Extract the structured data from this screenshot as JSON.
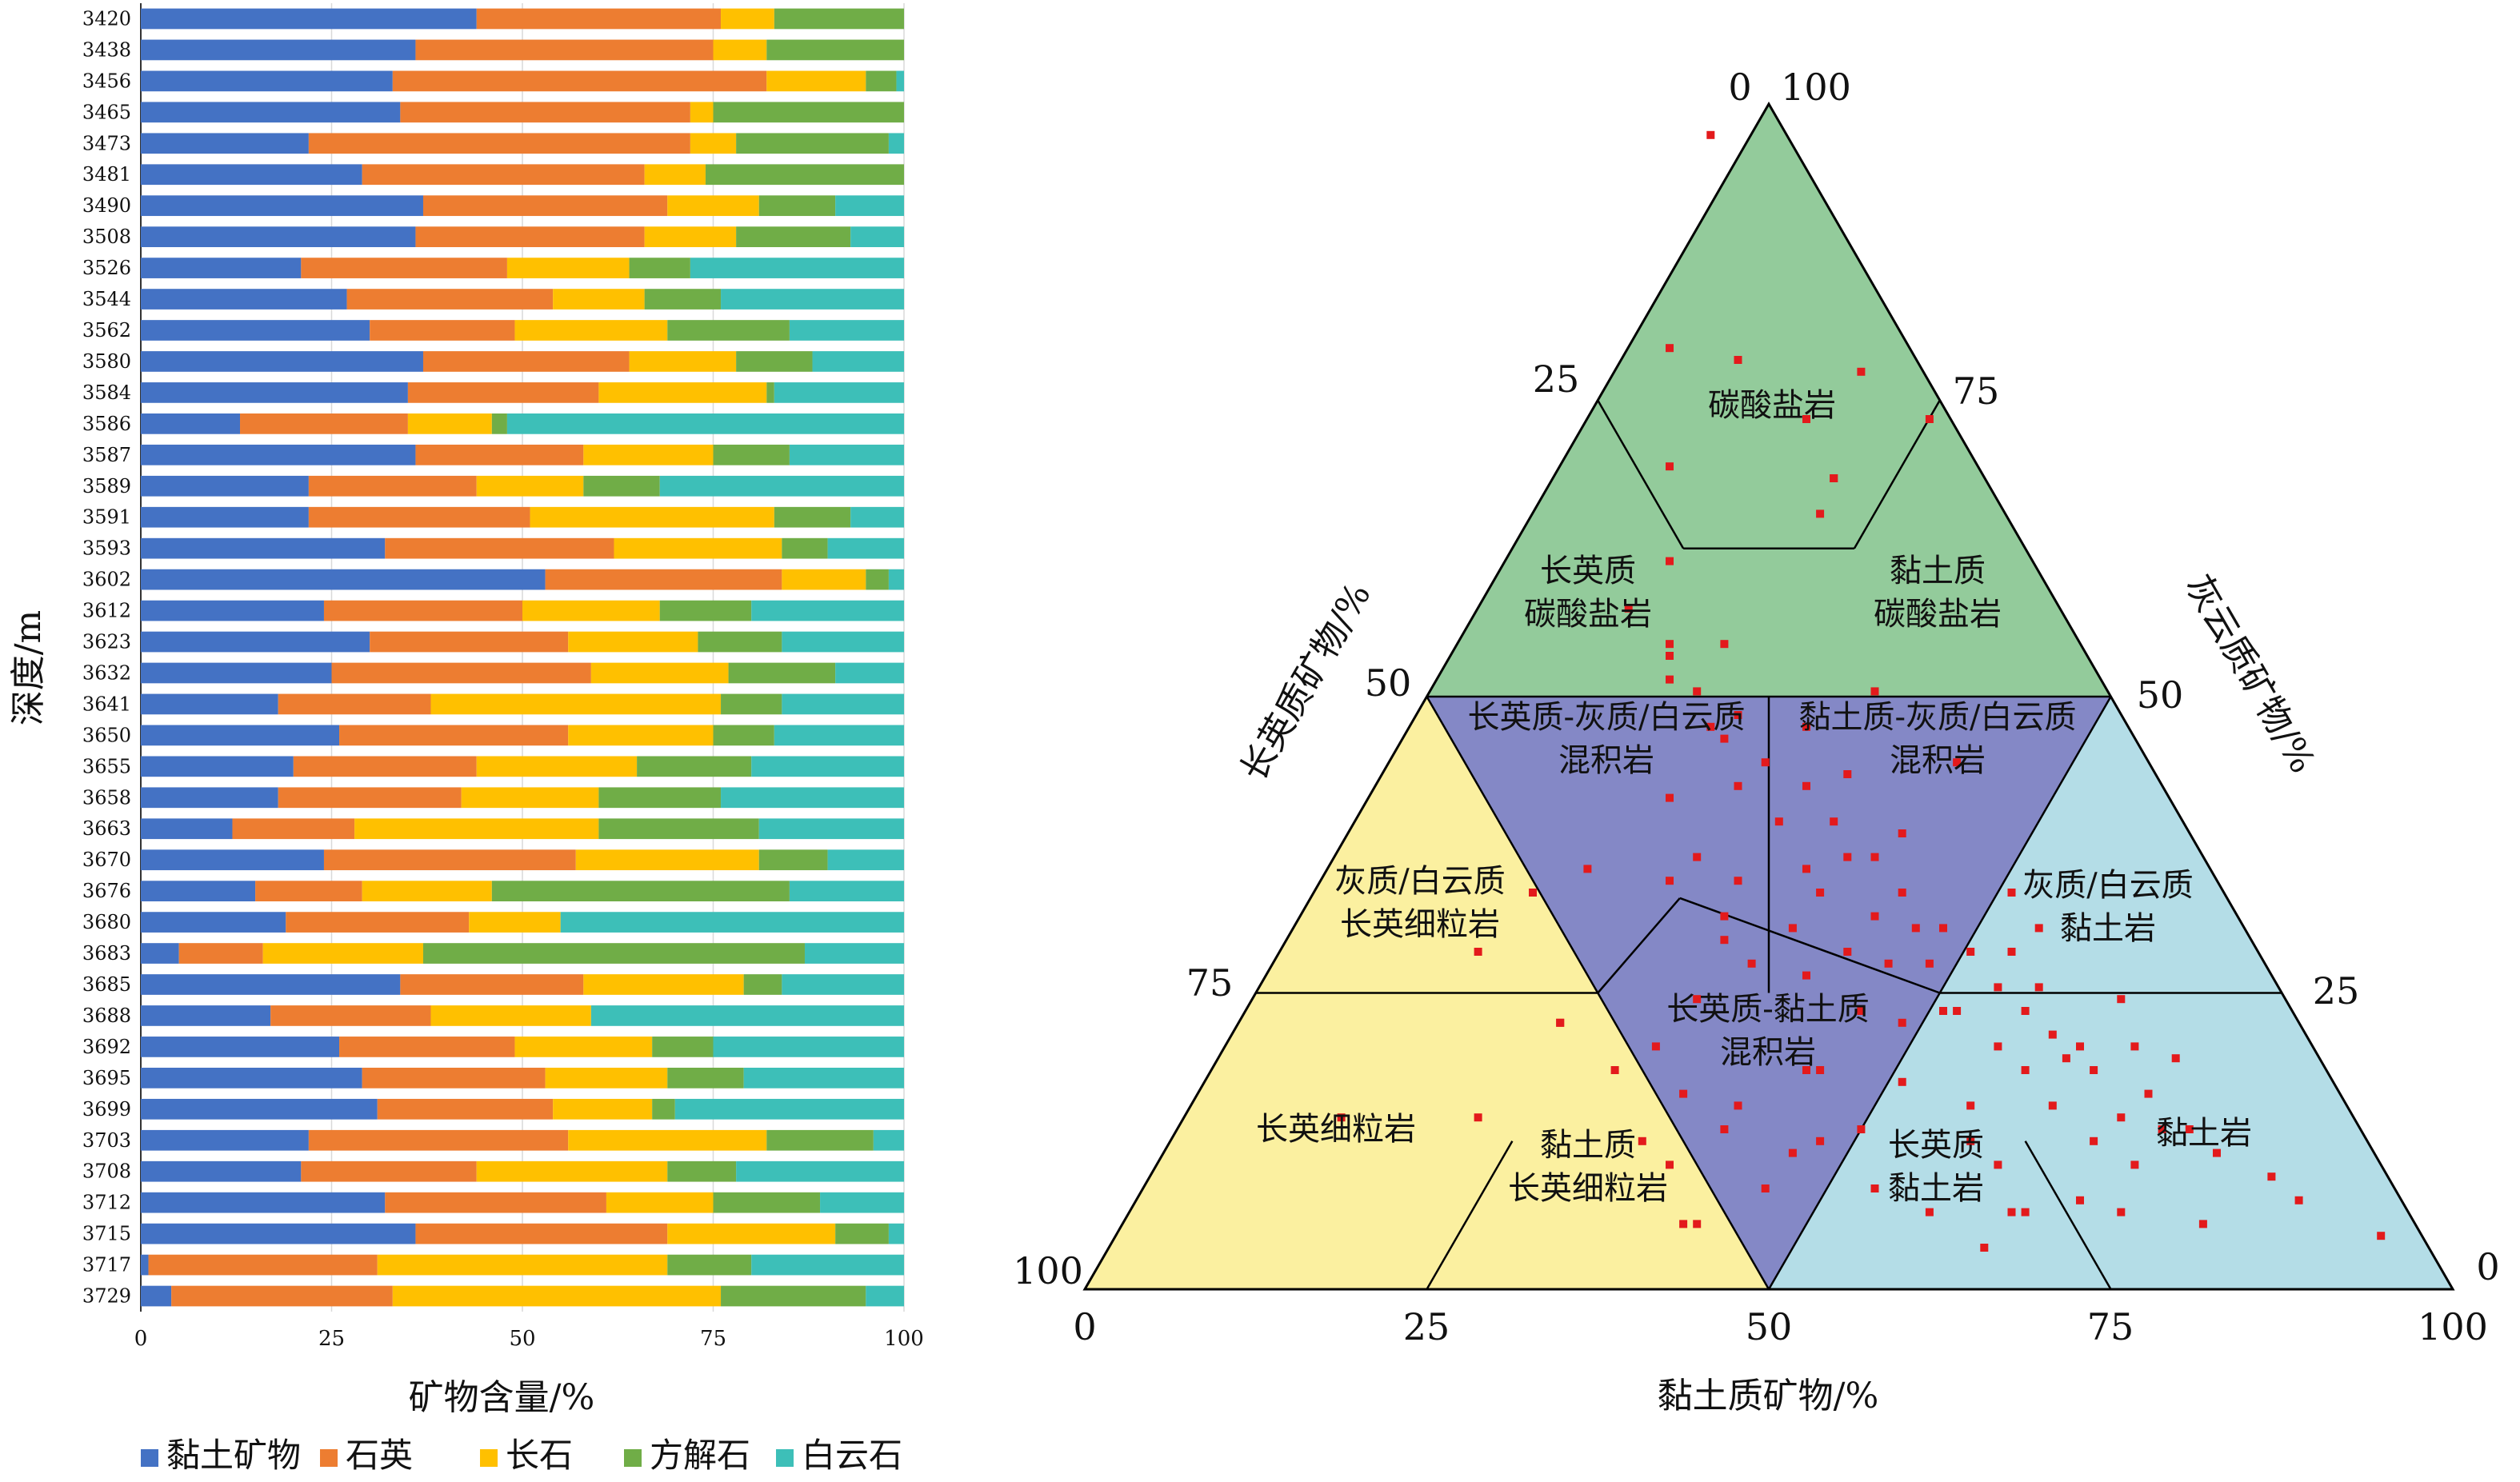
{
  "legend": [
    {
      "name": "黏土矿物",
      "color": "#4472c4"
    },
    {
      "name": "石英",
      "color": "#ed7d31"
    },
    {
      "name": "长石",
      "color": "#ffc000"
    },
    {
      "name": "方解石",
      "color": "#70ad47"
    },
    {
      "name": "白云石",
      "color": "#3dbfb8"
    }
  ],
  "chart_data": [
    {
      "type": "bar",
      "orientation": "horizontal",
      "stacked": true,
      "xlabel": "矿物含量/%",
      "ylabel": "深度/m",
      "xlim": [
        0,
        100
      ],
      "xticks": [
        0,
        25,
        50,
        75,
        100
      ],
      "grid": true,
      "legend_position": "bottom",
      "categories": [
        "3420",
        "3438",
        "3456",
        "3465",
        "3473",
        "3481",
        "3490",
        "3508",
        "3526",
        "3544",
        "3562",
        "3580",
        "3584",
        "3586",
        "3587",
        "3589",
        "3591",
        "3593",
        "3602",
        "3612",
        "3623",
        "3632",
        "3641",
        "3650",
        "3655",
        "3658",
        "3663",
        "3670",
        "3676",
        "3680",
        "3683",
        "3685",
        "3688",
        "3692",
        "3695",
        "3699",
        "3703",
        "3708",
        "3712",
        "3715",
        "3717",
        "3729"
      ],
      "series": [
        {
          "name": "黏土矿物",
          "values": [
            44,
            36,
            33,
            34,
            22,
            29,
            37,
            36,
            21,
            27,
            30,
            37,
            35,
            13,
            36,
            22,
            22,
            32,
            53,
            24,
            30,
            25,
            18,
            26,
            20,
            18,
            12,
            24,
            15,
            19,
            5,
            34,
            17,
            26,
            29,
            31,
            22,
            21,
            32,
            36,
            1,
            4
          ]
        },
        {
          "name": "石英",
          "values": [
            32,
            39,
            49,
            38,
            50,
            37,
            32,
            30,
            27,
            27,
            19,
            27,
            25,
            22,
            22,
            22,
            29,
            30,
            31,
            26,
            26,
            34,
            20,
            30,
            24,
            24,
            16,
            33,
            14,
            24,
            11,
            24,
            21,
            23,
            24,
            23,
            34,
            23,
            29,
            33,
            30,
            29
          ]
        },
        {
          "name": "长石",
          "values": [
            7,
            7,
            13,
            3,
            6,
            8,
            12,
            12,
            16,
            12,
            20,
            14,
            22,
            11,
            17,
            14,
            32,
            22,
            11,
            18,
            17,
            18,
            38,
            19,
            21,
            18,
            32,
            24,
            17,
            12,
            21,
            21,
            21,
            18,
            16,
            13,
            26,
            25,
            14,
            22,
            38,
            43
          ]
        },
        {
          "name": "方解石",
          "values": [
            17,
            18,
            4,
            25,
            20,
            26,
            10,
            15,
            8,
            10,
            16,
            10,
            1,
            2,
            10,
            10,
            10,
            6,
            3,
            12,
            11,
            14,
            8,
            8,
            15,
            16,
            21,
            9,
            39,
            0,
            50,
            5,
            0,
            8,
            10,
            3,
            14,
            9,
            14,
            7,
            11,
            19
          ]
        },
        {
          "name": "白云石",
          "values": [
            0,
            0,
            1,
            0,
            2,
            0,
            9,
            7,
            28,
            24,
            15,
            12,
            17,
            52,
            15,
            32,
            7,
            10,
            2,
            20,
            16,
            9,
            16,
            17,
            20,
            24,
            19,
            10,
            15,
            45,
            13,
            16,
            41,
            25,
            21,
            30,
            4,
            22,
            11,
            2,
            20,
            5
          ]
        }
      ]
    },
    {
      "type": "scatter",
      "subtype": "ternary",
      "axes": [
        "黏土质矿物/%",
        "长英质矿物/%",
        "灰云质矿物/%"
      ],
      "bottom_labels": [
        "0",
        "25",
        "50",
        "75",
        "100"
      ],
      "left_labels": [
        "100",
        "75",
        "50",
        "25",
        "0"
      ],
      "right_labels": [
        "100",
        "75",
        "50",
        "25",
        "0"
      ],
      "zones": [
        "碳酸盐岩",
        "长英质\n碳酸盐岩",
        "黏土质\n碳酸盐岩",
        "长英质-灰质/白云质\n混积岩",
        "黏土质-灰质/白云质\n混积岩",
        "灰质/白云质\n长英细粒岩",
        "灰质/白云质\n黏土岩",
        "长英质-黏土质\n混积岩",
        "长英细粒岩",
        "黏土质\n长英细粒岩",
        "长英质\n黏土岩",
        "黏土岩"
      ],
      "point_color": "#e31a1c",
      "points_clay_carb": [
        [
          3,
          94
        ],
        [
          0,
          76
        ],
        [
          5,
          75
        ],
        [
          14,
          74
        ],
        [
          19,
          70
        ],
        [
          10,
          70
        ],
        [
          12,
          65
        ],
        [
          0,
          66
        ],
        [
          12,
          65
        ],
        [
          11,
          62
        ],
        [
          0,
          58
        ],
        [
          0,
          51
        ],
        [
          0,
          50
        ],
        [
          -3,
          54
        ],
        [
          4,
          51
        ],
        [
          0,
          48
        ],
        [
          2,
          47
        ],
        [
          3,
          44
        ],
        [
          7,
          41
        ],
        [
          5,
          45
        ],
        [
          10,
          44
        ],
        [
          4,
          43
        ],
        [
          5,
          39
        ],
        [
          10,
          39
        ],
        [
          12,
          36
        ],
        [
          8,
          36
        ],
        [
          10,
          32
        ],
        [
          13,
          33
        ],
        [
          15,
          33
        ],
        [
          17,
          30
        ],
        [
          15,
          28
        ],
        [
          18,
          27
        ],
        [
          20,
          27
        ],
        [
          19,
          24
        ],
        [
          22,
          25
        ],
        [
          25,
          25
        ],
        [
          24,
          22
        ],
        [
          26,
          20
        ],
        [
          27,
          22
        ],
        [
          21,
          20
        ],
        [
          28,
          18
        ],
        [
          24,
          17
        ],
        [
          30,
          17
        ],
        [
          34,
          17
        ],
        [
          26,
          15
        ],
        [
          31,
          15
        ],
        [
          35,
          13
        ],
        [
          28,
          12
        ],
        [
          33,
          11
        ],
        [
          36,
          10
        ],
        [
          38,
          10
        ],
        [
          31,
          9
        ],
        [
          40,
          8
        ],
        [
          34,
          7
        ],
        [
          44,
          6
        ],
        [
          23,
          0
        ],
        [
          26,
          3
        ],
        [
          39,
          2
        ],
        [
          52,
          1
        ],
        [
          46,
          4
        ],
        [
          30,
          4
        ],
        [
          24,
          7
        ],
        [
          22,
          9
        ],
        [
          25,
          30
        ],
        [
          27,
          27
        ],
        [
          15,
          47
        ],
        [
          17,
          35
        ],
        [
          13,
          40
        ],
        [
          21,
          41
        ],
        [
          29,
          16
        ],
        [
          33,
          21
        ],
        [
          37,
          16
        ],
        [
          22,
          12
        ],
        [
          25,
          3
        ],
        [
          33,
          3
        ],
        [
          0,
          38
        ],
        [
          4,
          28
        ],
        [
          0,
          31
        ],
        [
          -6,
          32
        ],
        [
          11,
          30
        ],
        [
          9,
          27
        ],
        [
          16,
          24
        ],
        [
          17,
          19
        ],
        [
          -10,
          30
        ],
        [
          4,
          26
        ],
        [
          0,
          7
        ],
        [
          4,
          10
        ],
        [
          10,
          23
        ],
        [
          11,
          15
        ],
        [
          14,
          20
        ],
        [
          17,
          14
        ],
        [
          19,
          3
        ],
        [
          20,
          20
        ],
        [
          -14,
          25
        ],
        [
          15,
          5
        ],
        [
          9,
          8
        ],
        [
          1,
          2
        ],
        [
          14,
          10
        ],
        [
          11,
          9
        ],
        [
          13,
          25
        ],
        [
          2,
          2
        ],
        [
          -2,
          9
        ],
        [
          10,
          15
        ],
        [
          7,
          5
        ],
        [
          -8,
          19
        ],
        [
          -4,
          15
        ],
        [
          -8,
          19
        ],
        [
          -24,
          11
        ],
        [
          -14,
          11
        ],
        [
          5,
          31
        ],
        [
          2,
          33
        ],
        [
          6,
          24
        ],
        [
          2,
          21
        ],
        [
          1,
          13
        ],
        [
          5,
          12
        ],
        [
          -1,
          17
        ]
      ]
    }
  ]
}
